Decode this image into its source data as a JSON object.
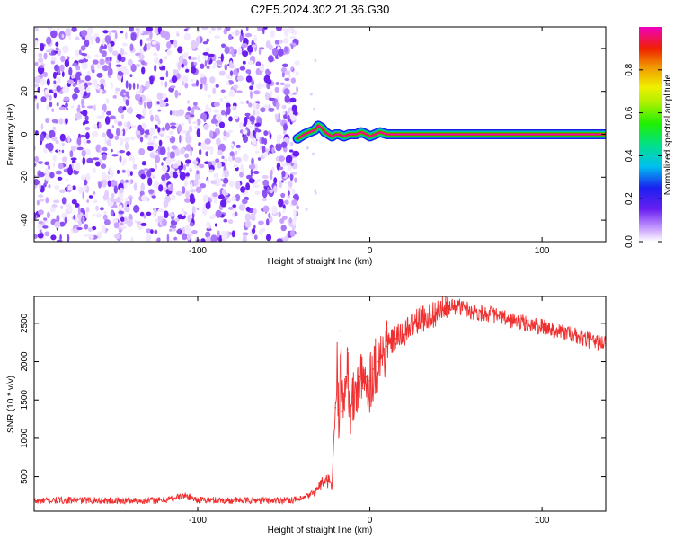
{
  "figure": {
    "title": "C2E5.2024.302.21.36.G30",
    "colorbar_label": "Normalized spectral amplitude"
  },
  "chart_data": [
    {
      "type": "heatmap",
      "title": "C2E5.2024.302.21.36.G30",
      "xlabel": "Height of straight line (km)",
      "ylabel": "Frequency (Hz)",
      "xlim": [
        -195,
        137
      ],
      "ylim": [
        -50,
        50
      ],
      "xticks": [
        -100,
        0,
        100
      ],
      "yticks": [
        -40,
        -20,
        0,
        20,
        40
      ],
      "colorbar": {
        "label": "Normalized spectral amplitude",
        "range": [
          0,
          1
        ],
        "ticks": [
          0.0,
          0.2,
          0.4,
          0.6,
          0.8
        ]
      },
      "noise_region": {
        "x": [
          -195,
          -42
        ],
        "color": "#6a1ff0"
      },
      "signal_track": {
        "x": [
          -42,
          -38,
          -35,
          -32,
          -30,
          -28,
          -26,
          -24,
          -22,
          -20,
          -18,
          -15,
          -12,
          -10,
          -8,
          -5,
          -2,
          0,
          3,
          6,
          10,
          20,
          40,
          80,
          137
        ],
        "y": [
          -2,
          0,
          1,
          2,
          4,
          3,
          1,
          0,
          -1,
          0,
          0,
          -1,
          0,
          0,
          0,
          1,
          0,
          -1,
          0,
          1,
          0,
          0,
          0,
          0,
          0
        ]
      }
    },
    {
      "type": "line",
      "xlabel": "Height of straight line (km)",
      "ylabel": "SNR (10 * v/v)",
      "xlim": [
        -195,
        137
      ],
      "ylim": [
        50,
        2850
      ],
      "xticks": [
        -100,
        0,
        100
      ],
      "yticks": [
        500,
        1000,
        1500,
        2000,
        2500
      ],
      "color": "#f03030",
      "x": [
        -195,
        -180,
        -160,
        -140,
        -120,
        -108,
        -104,
        -100,
        -80,
        -60,
        -40,
        -32,
        -28,
        -24,
        -22,
        -20,
        -19,
        -18,
        -17,
        -16,
        -15,
        -14,
        -13,
        -12,
        -10,
        -8,
        -6,
        -4,
        -2,
        0,
        2,
        5,
        10,
        15,
        20,
        25,
        30,
        35,
        40,
        45,
        50,
        55,
        60,
        70,
        80,
        90,
        100,
        110,
        120,
        130,
        137
      ],
      "y": [
        180,
        190,
        190,
        185,
        190,
        250,
        230,
        195,
        190,
        190,
        200,
        300,
        420,
        440,
        380,
        1400,
        1900,
        1200,
        2400,
        1350,
        1500,
        1800,
        2150,
        1350,
        1450,
        1600,
        1800,
        1650,
        1800,
        1750,
        1900,
        2000,
        2200,
        2300,
        2350,
        2500,
        2550,
        2600,
        2650,
        2700,
        2720,
        2700,
        2650,
        2620,
        2550,
        2500,
        2450,
        2400,
        2330,
        2260,
        2240
      ]
    }
  ]
}
